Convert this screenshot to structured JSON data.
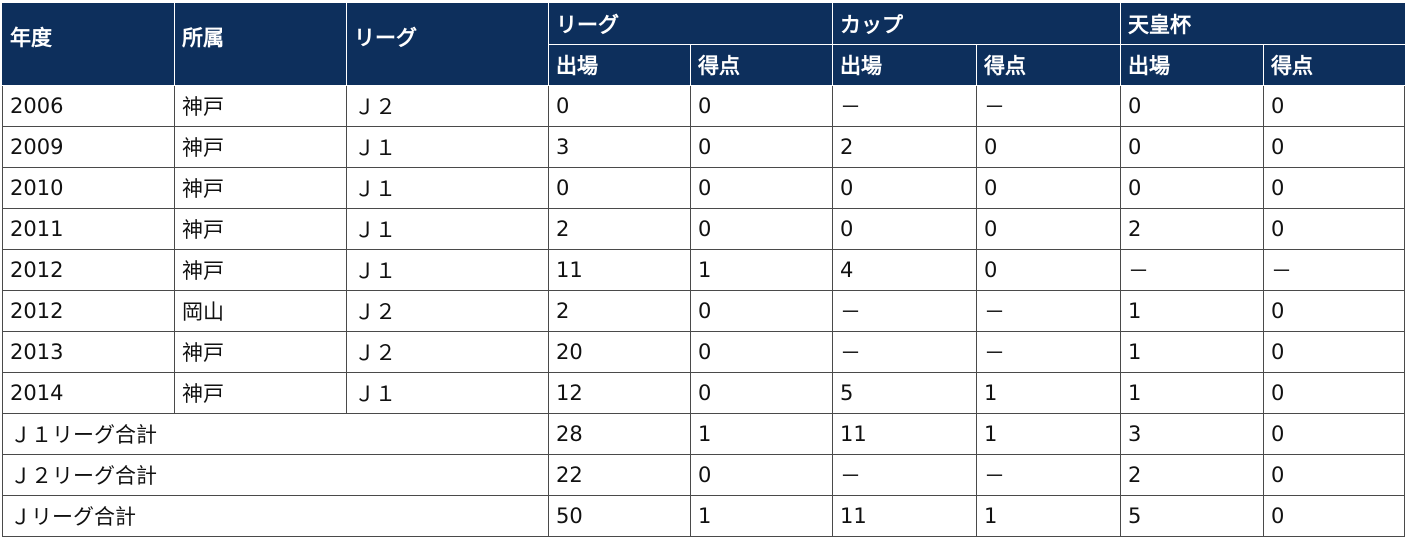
{
  "headers": {
    "year": "年度",
    "team": "所属",
    "league_div": "リーグ",
    "group_league": "リーグ",
    "group_cup": "カップ",
    "group_emperor": "天皇杯",
    "apps": "出場",
    "goals": "得点"
  },
  "rows": [
    {
      "year": "2006",
      "team": "神戸",
      "league": "Ｊ２",
      "l_apps": "0",
      "l_goals": "0",
      "c_apps": "－",
      "c_goals": "－",
      "e_apps": "0",
      "e_goals": "0"
    },
    {
      "year": "2009",
      "team": "神戸",
      "league": "Ｊ１",
      "l_apps": "3",
      "l_goals": "0",
      "c_apps": "2",
      "c_goals": "0",
      "e_apps": "0",
      "e_goals": "0"
    },
    {
      "year": "2010",
      "team": "神戸",
      "league": "Ｊ１",
      "l_apps": "0",
      "l_goals": "0",
      "c_apps": "0",
      "c_goals": "0",
      "e_apps": "0",
      "e_goals": "0"
    },
    {
      "year": "2011",
      "team": "神戸",
      "league": "Ｊ１",
      "l_apps": "2",
      "l_goals": "0",
      "c_apps": "0",
      "c_goals": "0",
      "e_apps": "2",
      "e_goals": "0"
    },
    {
      "year": "2012",
      "team": "神戸",
      "league": "Ｊ１",
      "l_apps": "11",
      "l_goals": "1",
      "c_apps": "4",
      "c_goals": "0",
      "e_apps": "－",
      "e_goals": "－"
    },
    {
      "year": "2012",
      "team": "岡山",
      "league": "Ｊ２",
      "l_apps": "2",
      "l_goals": "0",
      "c_apps": "－",
      "c_goals": "－",
      "e_apps": "1",
      "e_goals": "0"
    },
    {
      "year": "2013",
      "team": "神戸",
      "league": "Ｊ２",
      "l_apps": "20",
      "l_goals": "0",
      "c_apps": "－",
      "c_goals": "－",
      "e_apps": "1",
      "e_goals": "0"
    },
    {
      "year": "2014",
      "team": "神戸",
      "league": "Ｊ１",
      "l_apps": "12",
      "l_goals": "0",
      "c_apps": "5",
      "c_goals": "1",
      "e_apps": "1",
      "e_goals": "0"
    }
  ],
  "totals": [
    {
      "label": "Ｊ１リーグ合計",
      "l_apps": "28",
      "l_goals": "1",
      "c_apps": "11",
      "c_goals": "1",
      "e_apps": "3",
      "e_goals": "0"
    },
    {
      "label": "Ｊ２リーグ合計",
      "l_apps": "22",
      "l_goals": "0",
      "c_apps": "－",
      "c_goals": "－",
      "e_apps": "2",
      "e_goals": "0"
    },
    {
      "label": "Ｊリーグ合計",
      "l_apps": "50",
      "l_goals": "1",
      "c_apps": "11",
      "c_goals": "1",
      "e_apps": "5",
      "e_goals": "0"
    }
  ],
  "colors": {
    "header_bg": "#0d2f5c",
    "header_text": "#ffffff",
    "border": "#4a4a4a"
  }
}
